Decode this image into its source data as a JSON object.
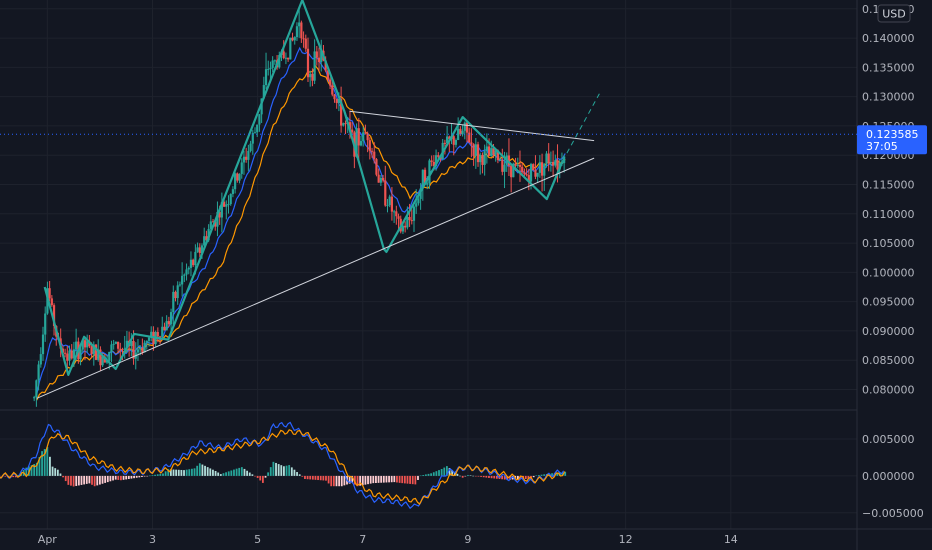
{
  "currency_label": "USD",
  "last_price": {
    "value": 0.123585,
    "label": "0.123585",
    "countdown": "37:05",
    "color": "#2962ff"
  },
  "colors": {
    "background": "#131722",
    "grid": "#1e222d",
    "up_candle": "#26a69a",
    "down_candle": "#ef5350",
    "ma_fast": "#2962ff",
    "ma_slow": "#ff9800",
    "zigzag": "#26a69a",
    "trendline": "#d1d4dc",
    "macd_line": "#2962ff",
    "signal_line": "#ff9800"
  },
  "chart_data": [
    {
      "type": "candlestick",
      "title": "",
      "x_ticks": [
        {
          "label": "Apr",
          "x": 0
        },
        {
          "label": "3",
          "x": 2
        },
        {
          "label": "5",
          "x": 4
        },
        {
          "label": "7",
          "x": 6
        },
        {
          "label": "9",
          "x": 8
        },
        {
          "label": "12",
          "x": 11
        },
        {
          "label": "14",
          "x": 13
        }
      ],
      "x_range": [
        -0.9,
        15.4
      ],
      "y_range": [
        0.0765,
        0.1465
      ],
      "y_ticks": [
        0.08,
        0.085,
        0.09,
        0.095,
        0.1,
        0.105,
        0.11,
        0.115,
        0.12,
        0.125,
        0.13,
        0.135,
        0.14,
        0.145
      ],
      "y_tick_labels": [
        "0.080000",
        "0.085000",
        "0.090000",
        "0.095000",
        "0.100000",
        "0.105000",
        "0.110000",
        "0.115000",
        "0.120000",
        "0.125000",
        "0.130000",
        "0.135000",
        "0.140000",
        "0.145000"
      ],
      "price_anchors": [
        [
          -0.25,
          0.0785
        ],
        [
          -0.05,
          0.093
        ],
        [
          0.0,
          0.0975
        ],
        [
          0.2,
          0.088
        ],
        [
          0.4,
          0.0855
        ],
        [
          0.7,
          0.0875
        ],
        [
          1.0,
          0.0855
        ],
        [
          1.3,
          0.0875
        ],
        [
          1.65,
          0.0865
        ],
        [
          2.0,
          0.089
        ],
        [
          2.3,
          0.0915
        ],
        [
          2.5,
          0.098
        ],
        [
          2.8,
          0.102
        ],
        [
          3.1,
          0.108
        ],
        [
          3.4,
          0.112
        ],
        [
          3.7,
          0.118
        ],
        [
          3.95,
          0.124
        ],
        [
          4.2,
          0.135
        ],
        [
          4.5,
          0.137
        ],
        [
          4.7,
          0.14
        ],
        [
          4.8,
          0.144
        ],
        [
          4.95,
          0.134
        ],
        [
          5.2,
          0.137
        ],
        [
          5.4,
          0.132
        ],
        [
          5.6,
          0.126
        ],
        [
          5.85,
          0.122
        ],
        [
          6.1,
          0.124
        ],
        [
          6.3,
          0.116
        ],
        [
          6.5,
          0.112
        ],
        [
          6.7,
          0.107
        ],
        [
          6.9,
          0.109
        ],
        [
          7.15,
          0.116
        ],
        [
          7.4,
          0.12
        ],
        [
          7.7,
          0.1225
        ],
        [
          7.95,
          0.124
        ],
        [
          8.2,
          0.1195
        ],
        [
          8.5,
          0.12
        ],
        [
          8.8,
          0.1185
        ],
        [
          9.05,
          0.1165
        ],
        [
          9.3,
          0.1175
        ],
        [
          9.6,
          0.12
        ],
        [
          9.75,
          0.1185
        ],
        [
          9.85,
          0.122
        ]
      ],
      "ma_fast_anchors": [
        [
          -0.2,
          0.0795
        ],
        [
          0.1,
          0.089
        ],
        [
          0.5,
          0.0865
        ],
        [
          1.0,
          0.086
        ],
        [
          1.6,
          0.0865
        ],
        [
          2.2,
          0.089
        ],
        [
          2.6,
          0.096
        ],
        [
          3.0,
          0.101
        ],
        [
          3.5,
          0.11
        ],
        [
          4.0,
          0.121
        ],
        [
          4.4,
          0.132
        ],
        [
          4.8,
          0.138
        ],
        [
          5.2,
          0.136
        ],
        [
          5.6,
          0.128
        ],
        [
          6.0,
          0.123
        ],
        [
          6.4,
          0.116
        ],
        [
          6.8,
          0.11
        ],
        [
          7.2,
          0.116
        ],
        [
          7.6,
          0.12
        ],
        [
          8.0,
          0.122
        ],
        [
          8.5,
          0.12
        ],
        [
          9.0,
          0.117
        ],
        [
          9.5,
          0.118
        ],
        [
          9.85,
          0.12
        ]
      ],
      "ma_slow_anchors": [
        [
          -0.2,
          0.0785
        ],
        [
          0.2,
          0.082
        ],
        [
          0.6,
          0.085
        ],
        [
          1.2,
          0.0862
        ],
        [
          1.8,
          0.087
        ],
        [
          2.4,
          0.0895
        ],
        [
          2.8,
          0.095
        ],
        [
          3.3,
          0.101
        ],
        [
          3.8,
          0.112
        ],
        [
          4.3,
          0.125
        ],
        [
          4.7,
          0.132
        ],
        [
          5.1,
          0.135
        ],
        [
          5.5,
          0.131
        ],
        [
          6.0,
          0.125
        ],
        [
          6.5,
          0.118
        ],
        [
          6.9,
          0.113
        ],
        [
          7.3,
          0.115
        ],
        [
          7.7,
          0.118
        ],
        [
          8.2,
          0.12
        ],
        [
          8.7,
          0.1195
        ],
        [
          9.2,
          0.118
        ],
        [
          9.85,
          0.119
        ]
      ],
      "zigzag": [
        [
          -0.05,
          0.0975
        ],
        [
          0.4,
          0.0825
        ],
        [
          0.7,
          0.089
        ],
        [
          1.3,
          0.0835
        ],
        [
          1.65,
          0.0895
        ],
        [
          2.3,
          0.0885
        ],
        [
          4.85,
          0.1465
        ],
        [
          5.65,
          0.1275
        ],
        [
          6.4,
          0.104
        ],
        [
          6.45,
          0.1035
        ],
        [
          7.9,
          0.1265
        ],
        [
          9.5,
          0.1125
        ],
        [
          9.8,
          0.119
        ]
      ],
      "trendlines": [
        {
          "from": [
            -0.2,
            0.0785
          ],
          "to": [
            10.4,
            0.1195
          ],
          "style": "solid"
        },
        {
          "from": [
            5.75,
            0.1275
          ],
          "to": [
            10.4,
            0.1225
          ],
          "style": "solid"
        },
        {
          "from": [
            9.8,
            0.119
          ],
          "to": [
            10.5,
            0.1305
          ],
          "style": "dashed"
        }
      ]
    },
    {
      "type": "macd",
      "title": "",
      "y_range": [
        -0.0072,
        0.0088
      ],
      "y_ticks": [
        -0.005,
        0.0,
        0.005
      ],
      "y_tick_labels": [
        "−0.005000",
        "0.000000",
        "0.005000"
      ],
      "macd_anchors": [
        [
          -0.9,
          0.0
        ],
        [
          -1.0,
          0.0
        ],
        [
          -0.6,
          0.0
        ],
        [
          -0.4,
          0.001
        ],
        [
          -0.2,
          0.003
        ],
        [
          0.0,
          0.0068
        ],
        [
          0.2,
          0.006
        ],
        [
          0.5,
          0.0035
        ],
        [
          0.9,
          0.0012
        ],
        [
          1.4,
          0.0005
        ],
        [
          1.8,
          0.0005
        ],
        [
          2.2,
          0.001
        ],
        [
          2.6,
          0.0028
        ],
        [
          2.9,
          0.0045
        ],
        [
          3.3,
          0.0038
        ],
        [
          3.7,
          0.005
        ],
        [
          4.1,
          0.0042
        ],
        [
          4.3,
          0.0068
        ],
        [
          4.6,
          0.007
        ],
        [
          4.9,
          0.0055
        ],
        [
          5.3,
          0.0035
        ],
        [
          5.6,
          0.0005
        ],
        [
          5.9,
          -0.002
        ],
        [
          6.2,
          -0.0032
        ],
        [
          6.6,
          -0.0035
        ],
        [
          7.0,
          -0.0042
        ],
        [
          7.3,
          -0.002
        ],
        [
          7.6,
          0.0005
        ],
        [
          8.0,
          0.0012
        ],
        [
          8.4,
          0.0006
        ],
        [
          8.8,
          -0.0004
        ],
        [
          9.2,
          -0.0008
        ],
        [
          9.6,
          0.0002
        ],
        [
          9.85,
          0.0008
        ]
      ],
      "signal_anchors": [
        [
          -1.0,
          0.0
        ],
        [
          -0.4,
          0.0002
        ],
        [
          -0.1,
          0.0025
        ],
        [
          0.1,
          0.0055
        ],
        [
          0.4,
          0.0052
        ],
        [
          0.8,
          0.0025
        ],
        [
          1.3,
          0.001
        ],
        [
          1.8,
          0.0006
        ],
        [
          2.3,
          0.0008
        ],
        [
          2.8,
          0.0032
        ],
        [
          3.2,
          0.0035
        ],
        [
          3.6,
          0.004
        ],
        [
          4.0,
          0.0046
        ],
        [
          4.5,
          0.006
        ],
        [
          4.9,
          0.0058
        ],
        [
          5.4,
          0.0035
        ],
        [
          5.8,
          -0.0005
        ],
        [
          6.2,
          -0.0025
        ],
        [
          6.7,
          -0.003
        ],
        [
          7.1,
          -0.0035
        ],
        [
          7.5,
          -0.001
        ],
        [
          7.9,
          0.0012
        ],
        [
          8.4,
          0.0008
        ],
        [
          8.9,
          -0.0002
        ],
        [
          9.3,
          -0.0006
        ],
        [
          9.85,
          0.0004
        ]
      ]
    }
  ]
}
